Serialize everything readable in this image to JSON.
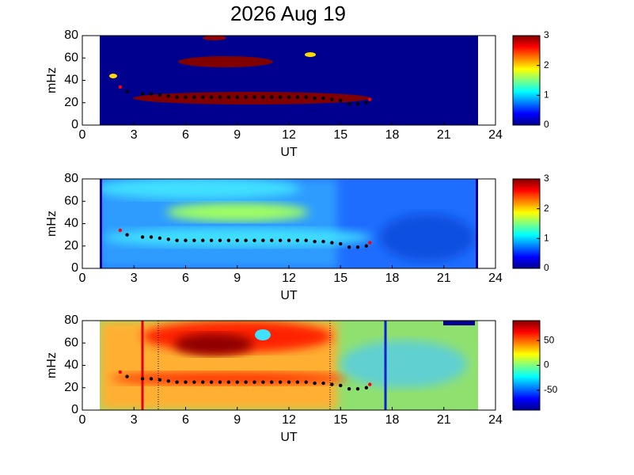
{
  "chart_data": [
    {
      "type": "spectrogram",
      "title": "2026 Aug 19",
      "xlabel": "UT",
      "ylabel": "mHz",
      "xlim": [
        0,
        24
      ],
      "xticks": [
        0,
        3,
        6,
        9,
        12,
        15,
        18,
        21,
        24
      ],
      "ylim": [
        0,
        80
      ],
      "yticks": [
        0,
        20,
        40,
        60,
        80
      ],
      "clim": [
        0,
        3
      ],
      "cticks": [
        0,
        1,
        2,
        3
      ],
      "series": [
        {
          "color": "#000000",
          "x": [
            2.6,
            3.5,
            4,
            4.5,
            5,
            5.5,
            6,
            6.5,
            7,
            7.5,
            8,
            8.5,
            9,
            9.5,
            10,
            10.5,
            11,
            11.5,
            12,
            12.5,
            13,
            13.5,
            14,
            14.5,
            15,
            15.5,
            16,
            16.5
          ],
          "values": [
            30,
            28,
            28,
            27,
            26,
            25,
            25,
            25,
            25,
            25,
            25,
            25,
            25,
            25,
            25,
            25,
            25,
            25,
            25,
            25,
            25,
            24,
            24,
            23,
            22,
            19,
            19,
            20
          ]
        },
        {
          "color": "#ff0000",
          "x": [
            2.2,
            16.7
          ],
          "values": [
            34,
            23
          ]
        }
      ]
    },
    {
      "type": "spectrogram",
      "xlabel": "UT",
      "ylabel": "mHz",
      "xlim": [
        0,
        24
      ],
      "xticks": [
        0,
        3,
        6,
        9,
        12,
        15,
        18,
        21,
        24
      ],
      "ylim": [
        0,
        80
      ],
      "yticks": [
        0,
        20,
        40,
        60,
        80
      ],
      "clim": [
        0,
        3
      ],
      "cticks": [
        0,
        1,
        2,
        3
      ],
      "series": [
        {
          "color": "#000000",
          "x": [
            2.6,
            3.5,
            4,
            4.5,
            5,
            5.5,
            6,
            6.5,
            7,
            7.5,
            8,
            8.5,
            9,
            9.5,
            10,
            10.5,
            11,
            11.5,
            12,
            12.5,
            13,
            13.5,
            14,
            14.5,
            15,
            15.5,
            16,
            16.5
          ],
          "values": [
            30,
            28,
            28,
            27,
            26,
            25,
            25,
            25,
            25,
            25,
            25,
            25,
            25,
            25,
            25,
            25,
            25,
            25,
            25,
            25,
            25,
            24,
            24,
            23,
            22,
            19,
            19,
            20
          ]
        },
        {
          "color": "#ff0000",
          "x": [
            2.2,
            16.7
          ],
          "values": [
            34,
            23
          ]
        }
      ]
    },
    {
      "type": "spectrogram",
      "xlabel": "UT",
      "ylabel": "mHz",
      "xlim": [
        0,
        24
      ],
      "xticks": [
        0,
        3,
        6,
        9,
        12,
        15,
        18,
        21,
        24
      ],
      "ylim": [
        0,
        80
      ],
      "yticks": [
        0,
        20,
        40,
        60,
        80
      ],
      "clim": [
        -90,
        90
      ],
      "cticks": [
        -50,
        0,
        50
      ],
      "series": [
        {
          "color": "#000000",
          "x": [
            2.6,
            3.5,
            4,
            4.5,
            5,
            5.5,
            6,
            6.5,
            7,
            7.5,
            8,
            8.5,
            9,
            9.5,
            10,
            10.5,
            11,
            11.5,
            12,
            12.5,
            13,
            13.5,
            14,
            14.5,
            15,
            15.5,
            16,
            16.5
          ],
          "values": [
            30,
            28,
            28,
            27,
            26,
            25,
            25,
            25,
            25,
            25,
            25,
            25,
            25,
            25,
            25,
            25,
            25,
            25,
            25,
            25,
            25,
            24,
            24,
            23,
            22,
            19,
            19,
            20
          ]
        },
        {
          "color": "#ff0000",
          "x": [
            2.2,
            16.7
          ],
          "values": [
            34,
            23
          ]
        }
      ]
    }
  ]
}
